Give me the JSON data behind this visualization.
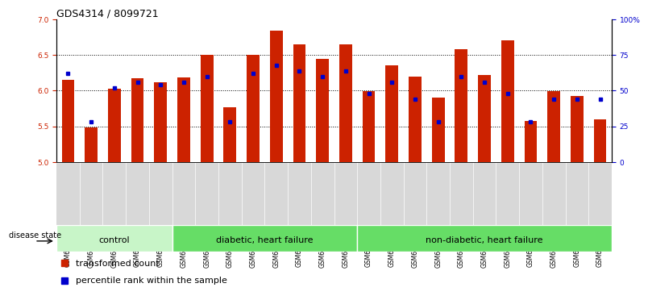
{
  "title": "GDS4314 / 8099721",
  "samples": [
    "GSM662158",
    "GSM662159",
    "GSM662160",
    "GSM662161",
    "GSM662162",
    "GSM662163",
    "GSM662164",
    "GSM662165",
    "GSM662166",
    "GSM662167",
    "GSM662168",
    "GSM662169",
    "GSM662170",
    "GSM662171",
    "GSM662172",
    "GSM662173",
    "GSM662174",
    "GSM662175",
    "GSM662176",
    "GSM662177",
    "GSM662178",
    "GSM662179",
    "GSM662180",
    "GSM662181"
  ],
  "red_values": [
    6.15,
    5.48,
    6.03,
    6.17,
    6.12,
    6.19,
    6.5,
    5.77,
    6.5,
    6.84,
    6.65,
    6.45,
    6.65,
    5.99,
    6.35,
    6.2,
    5.9,
    6.58,
    6.22,
    6.7,
    5.57,
    5.99,
    5.93,
    5.6
  ],
  "blue_values": [
    62,
    28,
    52,
    56,
    54,
    56,
    60,
    28,
    62,
    68,
    64,
    60,
    64,
    48,
    56,
    44,
    28,
    60,
    56,
    48,
    28,
    44,
    44,
    44
  ],
  "group_defs": [
    {
      "start": 0,
      "end": 4,
      "label": "control",
      "facecolor": "#c8f5c8"
    },
    {
      "start": 5,
      "end": 12,
      "label": "diabetic, heart failure",
      "facecolor": "#66dd66"
    },
    {
      "start": 13,
      "end": 23,
      "label": "non-diabetic, heart failure",
      "facecolor": "#66dd66"
    }
  ],
  "ylim_left": [
    5,
    7
  ],
  "ylim_right": [
    0,
    100
  ],
  "yticks_left": [
    5,
    5.5,
    6,
    6.5,
    7
  ],
  "yticks_right": [
    0,
    25,
    50,
    75,
    100
  ],
  "bar_color": "#cc2200",
  "blue_color": "#0000cc",
  "grid_lines": [
    5.5,
    6.0,
    6.5
  ],
  "title_fontsize": 9,
  "tick_fontsize": 6.5,
  "sample_fontsize": 5.5,
  "group_fontsize": 8,
  "legend_fontsize": 8
}
